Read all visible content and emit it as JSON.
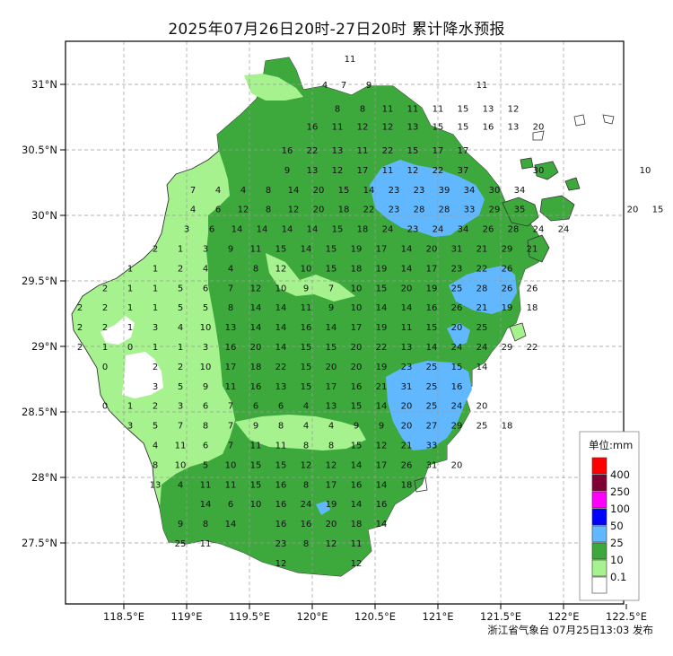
{
  "title": "2025年07月26日20时-27日20时 累计降水预报",
  "footer": "浙江省气象台 07月25日13:03 发布",
  "axes": {
    "lon_ticks": [
      118.5,
      119,
      119.5,
      120,
      120.5,
      121,
      121.5,
      122,
      122.5
    ],
    "lon_labels": [
      "118.5°E",
      "119°E",
      "119.5°E",
      "120°E",
      "120.5°E",
      "121°E",
      "121.5°E",
      "122°E",
      "122.5°E"
    ],
    "lat_ticks": [
      31,
      30.5,
      30,
      29.5,
      29,
      28.5,
      28,
      27.5
    ],
    "lat_labels": [
      "31°N",
      "30.5°N",
      "30°N",
      "29.5°N",
      "29°N",
      "28.5°N",
      "28°N",
      "27.5°N"
    ],
    "grid": true
  },
  "legend": {
    "title": "单位:mm",
    "placement": "bottom-right",
    "levels": [
      {
        "label": "400",
        "color": "#ff0000"
      },
      {
        "label": "250",
        "color": "#7f0032"
      },
      {
        "label": "100",
        "color": "#ff00ff"
      },
      {
        "label": "50",
        "color": "#0000fe"
      },
      {
        "label": "25",
        "color": "#61b8ff"
      },
      {
        "label": "10",
        "color": "#3da93d"
      },
      {
        "label": "0.1",
        "color": "#a6f28f"
      },
      {
        "label": "",
        "color": "#ffffff"
      }
    ]
  },
  "values": [
    [
      31.2,
      120.3,
      "11"
    ],
    [
      31.0,
      120.1,
      "4"
    ],
    [
      31.0,
      120.25,
      "7"
    ],
    [
      31.0,
      120.45,
      "9"
    ],
    [
      31.0,
      121.35,
      "11"
    ],
    [
      30.82,
      120.2,
      "8"
    ],
    [
      30.82,
      120.4,
      "8"
    ],
    [
      30.82,
      120.6,
      "11"
    ],
    [
      30.82,
      120.8,
      "11"
    ],
    [
      30.82,
      121.0,
      "11"
    ],
    [
      30.82,
      121.2,
      "15"
    ],
    [
      30.82,
      121.4,
      "13"
    ],
    [
      30.82,
      121.6,
      "12"
    ],
    [
      30.68,
      120.0,
      "16"
    ],
    [
      30.68,
      120.2,
      "11"
    ],
    [
      30.68,
      120.4,
      "12"
    ],
    [
      30.68,
      120.6,
      "12"
    ],
    [
      30.68,
      120.8,
      "13"
    ],
    [
      30.68,
      121.0,
      "15"
    ],
    [
      30.68,
      121.2,
      "15"
    ],
    [
      30.68,
      121.4,
      "16"
    ],
    [
      30.68,
      121.6,
      "13"
    ],
    [
      30.68,
      121.8,
      "20"
    ],
    [
      30.5,
      119.8,
      "16"
    ],
    [
      30.5,
      120.0,
      "22"
    ],
    [
      30.5,
      120.2,
      "13"
    ],
    [
      30.5,
      120.4,
      "11"
    ],
    [
      30.5,
      120.6,
      "22"
    ],
    [
      30.5,
      120.8,
      "15"
    ],
    [
      30.5,
      121.0,
      "17"
    ],
    [
      30.5,
      121.2,
      "17"
    ],
    [
      30.35,
      119.8,
      "9"
    ],
    [
      30.35,
      120.0,
      "13"
    ],
    [
      30.35,
      120.2,
      "12"
    ],
    [
      30.35,
      120.4,
      "17"
    ],
    [
      30.35,
      120.6,
      "11"
    ],
    [
      30.35,
      120.8,
      "12"
    ],
    [
      30.35,
      121.0,
      "22"
    ],
    [
      30.35,
      121.2,
      "37"
    ],
    [
      30.35,
      121.8,
      "30"
    ],
    [
      30.35,
      122.65,
      "10"
    ],
    [
      30.2,
      119.05,
      "7"
    ],
    [
      30.2,
      119.25,
      "4"
    ],
    [
      30.2,
      119.45,
      "4"
    ],
    [
      30.2,
      119.65,
      "8"
    ],
    [
      30.2,
      119.85,
      "14"
    ],
    [
      30.2,
      120.05,
      "20"
    ],
    [
      30.2,
      120.25,
      "15"
    ],
    [
      30.2,
      120.45,
      "14"
    ],
    [
      30.2,
      120.65,
      "23"
    ],
    [
      30.2,
      120.85,
      "23"
    ],
    [
      30.2,
      121.05,
      "39"
    ],
    [
      30.2,
      121.25,
      "34"
    ],
    [
      30.2,
      121.45,
      "30"
    ],
    [
      30.2,
      121.65,
      "34"
    ],
    [
      30.05,
      119.05,
      "4"
    ],
    [
      30.05,
      119.25,
      "6"
    ],
    [
      30.05,
      119.45,
      "12"
    ],
    [
      30.05,
      119.65,
      "8"
    ],
    [
      30.05,
      119.85,
      "12"
    ],
    [
      30.05,
      120.05,
      "20"
    ],
    [
      30.05,
      120.25,
      "18"
    ],
    [
      30.05,
      120.45,
      "22"
    ],
    [
      30.05,
      120.65,
      "23"
    ],
    [
      30.05,
      120.85,
      "28"
    ],
    [
      30.05,
      121.05,
      "28"
    ],
    [
      30.05,
      121.25,
      "33"
    ],
    [
      30.05,
      121.45,
      "29"
    ],
    [
      30.05,
      121.65,
      "35"
    ],
    [
      30.05,
      122.55,
      "20"
    ],
    [
      30.05,
      122.75,
      "15"
    ],
    [
      29.9,
      119.0,
      "3"
    ],
    [
      29.9,
      119.2,
      "6"
    ],
    [
      29.9,
      119.4,
      "14"
    ],
    [
      29.9,
      119.6,
      "14"
    ],
    [
      29.9,
      119.8,
      "14"
    ],
    [
      29.9,
      120.0,
      "14"
    ],
    [
      29.9,
      120.2,
      "15"
    ],
    [
      29.9,
      120.4,
      "18"
    ],
    [
      29.9,
      120.6,
      "24"
    ],
    [
      29.9,
      120.8,
      "23"
    ],
    [
      29.9,
      121.0,
      "24"
    ],
    [
      29.9,
      121.2,
      "34"
    ],
    [
      29.9,
      121.4,
      "26"
    ],
    [
      29.9,
      121.6,
      "28"
    ],
    [
      29.9,
      121.8,
      "24"
    ],
    [
      29.9,
      122.0,
      "24"
    ],
    [
      29.75,
      118.75,
      "2"
    ],
    [
      29.75,
      118.95,
      "1"
    ],
    [
      29.75,
      119.15,
      "3"
    ],
    [
      29.75,
      119.35,
      "9"
    ],
    [
      29.75,
      119.55,
      "11"
    ],
    [
      29.75,
      119.75,
      "15"
    ],
    [
      29.75,
      119.95,
      "14"
    ],
    [
      29.75,
      120.15,
      "15"
    ],
    [
      29.75,
      120.35,
      "19"
    ],
    [
      29.75,
      120.55,
      "17"
    ],
    [
      29.75,
      120.75,
      "14"
    ],
    [
      29.75,
      120.95,
      "20"
    ],
    [
      29.75,
      121.15,
      "31"
    ],
    [
      29.75,
      121.35,
      "21"
    ],
    [
      29.75,
      121.55,
      "29"
    ],
    [
      29.75,
      121.75,
      "21"
    ],
    [
      29.6,
      118.55,
      "1"
    ],
    [
      29.6,
      118.75,
      "1"
    ],
    [
      29.6,
      118.95,
      "2"
    ],
    [
      29.6,
      119.15,
      "4"
    ],
    [
      29.6,
      119.35,
      "4"
    ],
    [
      29.6,
      119.55,
      "8"
    ],
    [
      29.6,
      119.75,
      "12"
    ],
    [
      29.6,
      119.95,
      "10"
    ],
    [
      29.6,
      120.15,
      "15"
    ],
    [
      29.6,
      120.35,
      "18"
    ],
    [
      29.6,
      120.55,
      "19"
    ],
    [
      29.6,
      120.75,
      "14"
    ],
    [
      29.6,
      120.95,
      "17"
    ],
    [
      29.6,
      121.15,
      "23"
    ],
    [
      29.6,
      121.35,
      "22"
    ],
    [
      29.6,
      121.55,
      "26"
    ],
    [
      29.45,
      118.35,
      "2"
    ],
    [
      29.45,
      118.55,
      "1"
    ],
    [
      29.45,
      118.75,
      "1"
    ],
    [
      29.45,
      118.95,
      "5"
    ],
    [
      29.45,
      119.15,
      "6"
    ],
    [
      29.45,
      119.35,
      "7"
    ],
    [
      29.45,
      119.55,
      "12"
    ],
    [
      29.45,
      119.75,
      "10"
    ],
    [
      29.45,
      119.95,
      "9"
    ],
    [
      29.45,
      120.15,
      "7"
    ],
    [
      29.45,
      120.35,
      "10"
    ],
    [
      29.45,
      120.55,
      "15"
    ],
    [
      29.45,
      120.75,
      "20"
    ],
    [
      29.45,
      120.95,
      "19"
    ],
    [
      29.45,
      121.15,
      "25"
    ],
    [
      29.45,
      121.35,
      "28"
    ],
    [
      29.45,
      121.55,
      "26"
    ],
    [
      29.45,
      121.75,
      "26"
    ],
    [
      29.3,
      118.15,
      "2"
    ],
    [
      29.3,
      118.35,
      "2"
    ],
    [
      29.3,
      118.55,
      "1"
    ],
    [
      29.3,
      118.75,
      "1"
    ],
    [
      29.3,
      118.95,
      "5"
    ],
    [
      29.3,
      119.15,
      "5"
    ],
    [
      29.3,
      119.35,
      "8"
    ],
    [
      29.3,
      119.55,
      "14"
    ],
    [
      29.3,
      119.75,
      "14"
    ],
    [
      29.3,
      119.95,
      "11"
    ],
    [
      29.3,
      120.15,
      "9"
    ],
    [
      29.3,
      120.35,
      "10"
    ],
    [
      29.3,
      120.55,
      "14"
    ],
    [
      29.3,
      120.75,
      "14"
    ],
    [
      29.3,
      120.95,
      "16"
    ],
    [
      29.3,
      121.15,
      "26"
    ],
    [
      29.3,
      121.35,
      "21"
    ],
    [
      29.3,
      121.55,
      "19"
    ],
    [
      29.3,
      121.75,
      "18"
    ],
    [
      29.15,
      118.15,
      "2"
    ],
    [
      29.15,
      118.35,
      "2"
    ],
    [
      29.15,
      118.55,
      "1"
    ],
    [
      29.15,
      118.75,
      "3"
    ],
    [
      29.15,
      118.95,
      "4"
    ],
    [
      29.15,
      119.15,
      "10"
    ],
    [
      29.15,
      119.35,
      "13"
    ],
    [
      29.15,
      119.55,
      "14"
    ],
    [
      29.15,
      119.75,
      "14"
    ],
    [
      29.15,
      119.95,
      "16"
    ],
    [
      29.15,
      120.15,
      "14"
    ],
    [
      29.15,
      120.35,
      "17"
    ],
    [
      29.15,
      120.55,
      "19"
    ],
    [
      29.15,
      120.75,
      "11"
    ],
    [
      29.15,
      120.95,
      "15"
    ],
    [
      29.15,
      121.15,
      "20"
    ],
    [
      29.15,
      121.35,
      "25"
    ],
    [
      29.0,
      118.15,
      "2"
    ],
    [
      29.0,
      118.35,
      "1"
    ],
    [
      29.0,
      118.55,
      "0"
    ],
    [
      29.0,
      118.75,
      "1"
    ],
    [
      29.0,
      118.95,
      "1"
    ],
    [
      29.0,
      119.15,
      "3"
    ],
    [
      29.0,
      119.35,
      "16"
    ],
    [
      29.0,
      119.55,
      "20"
    ],
    [
      29.0,
      119.75,
      "14"
    ],
    [
      29.0,
      119.95,
      "15"
    ],
    [
      29.0,
      120.15,
      "15"
    ],
    [
      29.0,
      120.35,
      "20"
    ],
    [
      29.0,
      120.55,
      "22"
    ],
    [
      29.0,
      120.75,
      "13"
    ],
    [
      29.0,
      120.95,
      "14"
    ],
    [
      29.0,
      121.15,
      "24"
    ],
    [
      29.0,
      121.35,
      "24"
    ],
    [
      29.0,
      121.55,
      "29"
    ],
    [
      29.0,
      121.75,
      "22"
    ],
    [
      28.85,
      118.35,
      "0"
    ],
    [
      28.85,
      118.75,
      "2"
    ],
    [
      28.85,
      118.95,
      "2"
    ],
    [
      28.85,
      119.15,
      "10"
    ],
    [
      28.85,
      119.35,
      "17"
    ],
    [
      28.85,
      119.55,
      "18"
    ],
    [
      28.85,
      119.75,
      "22"
    ],
    [
      28.85,
      119.95,
      "15"
    ],
    [
      28.85,
      120.15,
      "20"
    ],
    [
      28.85,
      120.35,
      "20"
    ],
    [
      28.85,
      120.55,
      "19"
    ],
    [
      28.85,
      120.75,
      "23"
    ],
    [
      28.85,
      120.95,
      "25"
    ],
    [
      28.85,
      121.15,
      "15"
    ],
    [
      28.85,
      121.35,
      "14"
    ],
    [
      28.7,
      118.75,
      "3"
    ],
    [
      28.7,
      118.95,
      "5"
    ],
    [
      28.7,
      119.15,
      "9"
    ],
    [
      28.7,
      119.35,
      "11"
    ],
    [
      28.7,
      119.55,
      "16"
    ],
    [
      28.7,
      119.75,
      "13"
    ],
    [
      28.7,
      119.95,
      "15"
    ],
    [
      28.7,
      120.15,
      "17"
    ],
    [
      28.7,
      120.35,
      "16"
    ],
    [
      28.7,
      120.55,
      "21"
    ],
    [
      28.7,
      120.75,
      "31"
    ],
    [
      28.7,
      120.95,
      "25"
    ],
    [
      28.7,
      121.15,
      "16"
    ],
    [
      28.55,
      118.35,
      "0"
    ],
    [
      28.55,
      118.55,
      "1"
    ],
    [
      28.55,
      118.75,
      "2"
    ],
    [
      28.55,
      118.95,
      "3"
    ],
    [
      28.55,
      119.15,
      "6"
    ],
    [
      28.55,
      119.35,
      "7"
    ],
    [
      28.55,
      119.55,
      "6"
    ],
    [
      28.55,
      119.75,
      "6"
    ],
    [
      28.55,
      119.95,
      "4"
    ],
    [
      28.55,
      120.15,
      "13"
    ],
    [
      28.55,
      120.35,
      "15"
    ],
    [
      28.55,
      120.55,
      "14"
    ],
    [
      28.55,
      120.75,
      "20"
    ],
    [
      28.55,
      120.95,
      "25"
    ],
    [
      28.55,
      121.15,
      "24"
    ],
    [
      28.55,
      121.35,
      "20"
    ],
    [
      28.4,
      118.55,
      "3"
    ],
    [
      28.4,
      118.75,
      "5"
    ],
    [
      28.4,
      118.95,
      "7"
    ],
    [
      28.4,
      119.15,
      "8"
    ],
    [
      28.4,
      119.35,
      "7"
    ],
    [
      28.4,
      119.55,
      "9"
    ],
    [
      28.4,
      119.75,
      "8"
    ],
    [
      28.4,
      119.95,
      "4"
    ],
    [
      28.4,
      120.15,
      "4"
    ],
    [
      28.4,
      120.35,
      "9"
    ],
    [
      28.4,
      120.55,
      "9"
    ],
    [
      28.4,
      120.75,
      "20"
    ],
    [
      28.4,
      120.95,
      "27"
    ],
    [
      28.4,
      121.15,
      "29"
    ],
    [
      28.4,
      121.35,
      "25"
    ],
    [
      28.4,
      121.55,
      "18"
    ],
    [
      28.25,
      118.75,
      "4"
    ],
    [
      28.25,
      118.95,
      "11"
    ],
    [
      28.25,
      119.15,
      "6"
    ],
    [
      28.25,
      119.35,
      "7"
    ],
    [
      28.25,
      119.55,
      "11"
    ],
    [
      28.25,
      119.75,
      "11"
    ],
    [
      28.25,
      119.95,
      "8"
    ],
    [
      28.25,
      120.15,
      "8"
    ],
    [
      28.25,
      120.35,
      "15"
    ],
    [
      28.25,
      120.55,
      "12"
    ],
    [
      28.25,
      120.75,
      "21"
    ],
    [
      28.25,
      120.95,
      "33"
    ],
    [
      28.1,
      118.75,
      "8"
    ],
    [
      28.1,
      118.95,
      "10"
    ],
    [
      28.1,
      119.15,
      "5"
    ],
    [
      28.1,
      119.35,
      "10"
    ],
    [
      28.1,
      119.55,
      "15"
    ],
    [
      28.1,
      119.75,
      "15"
    ],
    [
      28.1,
      119.95,
      "12"
    ],
    [
      28.1,
      120.15,
      "12"
    ],
    [
      28.1,
      120.35,
      "14"
    ],
    [
      28.1,
      120.55,
      "17"
    ],
    [
      28.1,
      120.75,
      "26"
    ],
    [
      28.1,
      120.95,
      "31"
    ],
    [
      28.1,
      121.15,
      "20"
    ],
    [
      27.95,
      118.75,
      "13"
    ],
    [
      27.95,
      118.95,
      "4"
    ],
    [
      27.95,
      119.15,
      "11"
    ],
    [
      27.95,
      119.35,
      "11"
    ],
    [
      27.95,
      119.55,
      "15"
    ],
    [
      27.95,
      119.75,
      "16"
    ],
    [
      27.95,
      119.95,
      "8"
    ],
    [
      27.95,
      120.15,
      "17"
    ],
    [
      27.95,
      120.35,
      "16"
    ],
    [
      27.95,
      120.55,
      "14"
    ],
    [
      27.95,
      120.75,
      "18"
    ],
    [
      27.8,
      119.15,
      "14"
    ],
    [
      27.8,
      119.35,
      "6"
    ],
    [
      27.8,
      119.55,
      "10"
    ],
    [
      27.8,
      119.75,
      "16"
    ],
    [
      27.8,
      119.95,
      "24"
    ],
    [
      27.8,
      120.15,
      "19"
    ],
    [
      27.8,
      120.35,
      "14"
    ],
    [
      27.8,
      120.55,
      "16"
    ],
    [
      27.65,
      118.95,
      "9"
    ],
    [
      27.65,
      119.15,
      "8"
    ],
    [
      27.65,
      119.35,
      "14"
    ],
    [
      27.65,
      119.75,
      "16"
    ],
    [
      27.65,
      119.95,
      "16"
    ],
    [
      27.65,
      120.15,
      "20"
    ],
    [
      27.65,
      120.35,
      "18"
    ],
    [
      27.65,
      120.55,
      "14"
    ],
    [
      27.5,
      118.95,
      "25"
    ],
    [
      27.5,
      119.15,
      "11"
    ],
    [
      27.5,
      119.75,
      "23"
    ],
    [
      27.5,
      119.95,
      "8"
    ],
    [
      27.5,
      120.15,
      "12"
    ],
    [
      27.5,
      120.35,
      "11"
    ],
    [
      27.35,
      119.75,
      "12"
    ],
    [
      27.35,
      120.35,
      "12"
    ]
  ]
}
